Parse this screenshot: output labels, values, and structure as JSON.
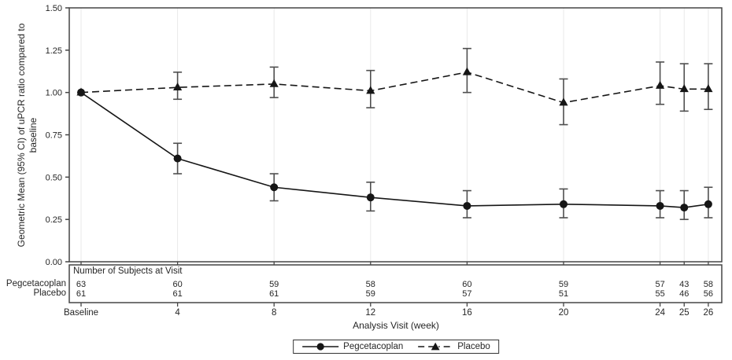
{
  "figure": {
    "y_axis_label": "Geometric Mean (95% CI) of uPCR ratio compared to baseline",
    "y_axis_label_lines": [
      "Geometric Mean (95% CI) of uPCR ratio compared to",
      "baseline"
    ],
    "x_axis_label": "Analysis Visit (week)",
    "subjects_table": {
      "header": "Number of Subjects at Visit",
      "row_labels": [
        "Pegcetacoplan",
        "Placebo"
      ]
    },
    "legend": {
      "position": "bottom-center",
      "items": [
        {
          "label": "Pegcetacoplan",
          "marker": "filled-circle",
          "line": "solid"
        },
        {
          "label": "Placebo",
          "marker": "filled-triangle",
          "line": "dash-dot"
        }
      ]
    }
  },
  "colors": {
    "series": "#161616",
    "error_bar": "#4f4f4f",
    "gridline": "#e9e9e9",
    "frame": "#454545",
    "text": "#262626",
    "background": "#ffffff"
  },
  "chart_data": {
    "type": "line",
    "title": "",
    "xlabel": "Analysis Visit (week)",
    "ylabel": "Geometric Mean (95% CI) of uPCR ratio compared to baseline",
    "x_weeks": [
      0,
      4,
      8,
      12,
      16,
      20,
      24,
      25,
      26
    ],
    "x_tick_labels": [
      "Baseline",
      "4",
      "8",
      "12",
      "16",
      "20",
      "24",
      "25",
      "26"
    ],
    "y_ticks": [
      0.0,
      0.25,
      0.5,
      0.75,
      1.0,
      1.25,
      1.5
    ],
    "y_tick_labels": [
      "0.00",
      "0.25",
      "0.50",
      "0.75",
      "1.00",
      "1.25",
      "1.50"
    ],
    "ylim": [
      0,
      1.5
    ],
    "grid": "vertical-only",
    "legend_position": "bottom",
    "series": [
      {
        "name": "Pegcetacoplan",
        "marker": "circle",
        "line_style": "solid",
        "values": [
          1.0,
          0.61,
          0.44,
          0.38,
          0.33,
          0.34,
          0.33,
          0.32,
          0.34
        ],
        "ci_low": [
          1.0,
          0.52,
          0.36,
          0.3,
          0.26,
          0.26,
          0.26,
          0.25,
          0.26
        ],
        "ci_high": [
          1.0,
          0.7,
          0.52,
          0.47,
          0.42,
          0.43,
          0.42,
          0.42,
          0.44
        ],
        "subjects_at_visit": [
          63,
          60,
          59,
          58,
          60,
          59,
          57,
          43,
          58
        ]
      },
      {
        "name": "Placebo",
        "marker": "triangle",
        "line_style": "dashed",
        "values": [
          1.0,
          1.03,
          1.05,
          1.01,
          1.12,
          0.94,
          1.04,
          1.02,
          1.02
        ],
        "ci_low": [
          1.0,
          0.96,
          0.97,
          0.91,
          1.0,
          0.81,
          0.93,
          0.89,
          0.9
        ],
        "ci_high": [
          1.0,
          1.12,
          1.15,
          1.13,
          1.26,
          1.08,
          1.18,
          1.17,
          1.17
        ],
        "subjects_at_visit": [
          61,
          61,
          61,
          59,
          57,
          51,
          55,
          46,
          56
        ]
      }
    ]
  }
}
